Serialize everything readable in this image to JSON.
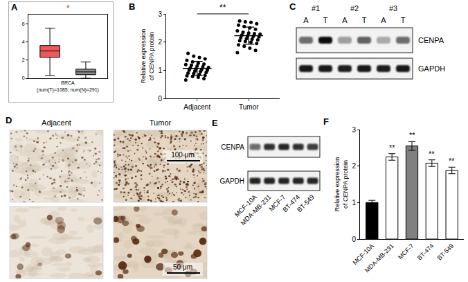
{
  "chart_data": [
    {
      "title": "A",
      "type": "box",
      "xlabel": [
        "BRCA",
        "(num(T)=1085; num(N)=291)"
      ],
      "tick_labels": "y",
      "ylim": [
        0,
        7
      ],
      "yticks": [
        0,
        2,
        4,
        6
      ],
      "boxes": [
        {
          "color": "#f0575a",
          "lowerfence": 0.3,
          "q1": 2.3,
          "median": 3.0,
          "q3": 3.6,
          "upperfence": 5.5
        },
        {
          "color": "#8c8c8c",
          "lowerfence": 0.0,
          "q1": 0.4,
          "median": 0.7,
          "q3": 1.0,
          "upperfence": 1.8
        }
      ],
      "annotations": [
        {
          "text": "*",
          "color": "#e8191c"
        }
      ]
    },
    {
      "title": "B",
      "type": "scatter",
      "categories": [
        "Adjacent",
        "Tumor"
      ],
      "ylabel": [
        "Relative expression",
        "of CENPA protein"
      ],
      "ylim": [
        0,
        3
      ],
      "yticks": [
        0,
        1,
        2,
        3
      ],
      "color": "#000000",
      "values": [
        [
          0.65,
          0.7,
          0.75,
          0.78,
          0.8,
          0.82,
          0.85,
          0.88,
          0.9,
          0.92,
          0.95,
          0.97,
          1.0,
          1.0,
          1.02,
          1.05,
          1.08,
          1.1,
          1.12,
          1.15,
          1.18,
          1.2,
          1.22,
          1.25,
          1.3,
          1.35,
          1.4,
          1.45,
          1.5,
          1.6
        ],
        [
          1.62,
          1.7,
          1.78,
          1.85,
          1.9,
          1.95,
          2.0,
          2.02,
          2.05,
          2.08,
          2.1,
          2.12,
          2.15,
          2.18,
          2.2,
          2.22,
          2.25,
          2.28,
          2.3,
          2.32,
          2.35,
          2.4,
          2.45,
          2.5,
          2.55,
          2.6,
          2.65,
          2.7,
          2.72,
          2.75
        ]
      ],
      "annotations": [
        {
          "text": "**"
        }
      ]
    },
    {
      "title": "C",
      "type": "western_blot",
      "groups": [
        "#1",
        "#2",
        "#3"
      ],
      "lanes": [
        "A",
        "T",
        "A",
        "T",
        "A",
        "T"
      ],
      "rows": [
        {
          "label": "CENPA",
          "intensity": [
            0.55,
            0.95,
            0.35,
            0.6,
            0.3,
            0.55
          ]
        },
        {
          "label": "GAPDH",
          "intensity": [
            0.9,
            0.9,
            0.88,
            0.9,
            0.88,
            0.9
          ]
        }
      ]
    },
    {
      "title": "D",
      "type": "image_grid",
      "columns": [
        "Adjacent",
        "Tumor"
      ],
      "scale_bars": [
        "100 μm",
        "50 μm"
      ]
    },
    {
      "title": "E",
      "type": "western_blot",
      "lanes": [
        "MCF-10A",
        "MDA-MB-231",
        "MCF-7",
        "BT-474",
        "BT-549"
      ],
      "rows": [
        {
          "label": "CENPA",
          "intensity": [
            0.55,
            0.8,
            0.85,
            0.8,
            0.75
          ]
        },
        {
          "label": "GAPDH",
          "intensity": [
            0.85,
            0.85,
            0.85,
            0.85,
            0.85
          ]
        }
      ]
    },
    {
      "title": "F",
      "type": "bar",
      "categories": [
        "MCF-10A",
        "MDA-MB-231",
        "MCF-7",
        "BT-474",
        "BT-549"
      ],
      "values": [
        1.0,
        2.25,
        2.55,
        2.08,
        1.88
      ],
      "errors": [
        0.06,
        0.09,
        0.12,
        0.09,
        0.09
      ],
      "colors": [
        "#000000",
        "#ffffff",
        "#808080",
        "#ffffff",
        "#ffffff"
      ],
      "ylabel": [
        "Relative expression",
        "of CENPA protein"
      ],
      "ylim": [
        0,
        3
      ],
      "yticks": [
        0,
        1,
        2,
        3
      ],
      "annotations": [
        {
          "category": "MDA-MB-231",
          "text": "**"
        },
        {
          "category": "MCF-7",
          "text": "**"
        },
        {
          "category": "BT-474",
          "text": "**"
        },
        {
          "category": "BT-549",
          "text": "**"
        }
      ]
    }
  ]
}
